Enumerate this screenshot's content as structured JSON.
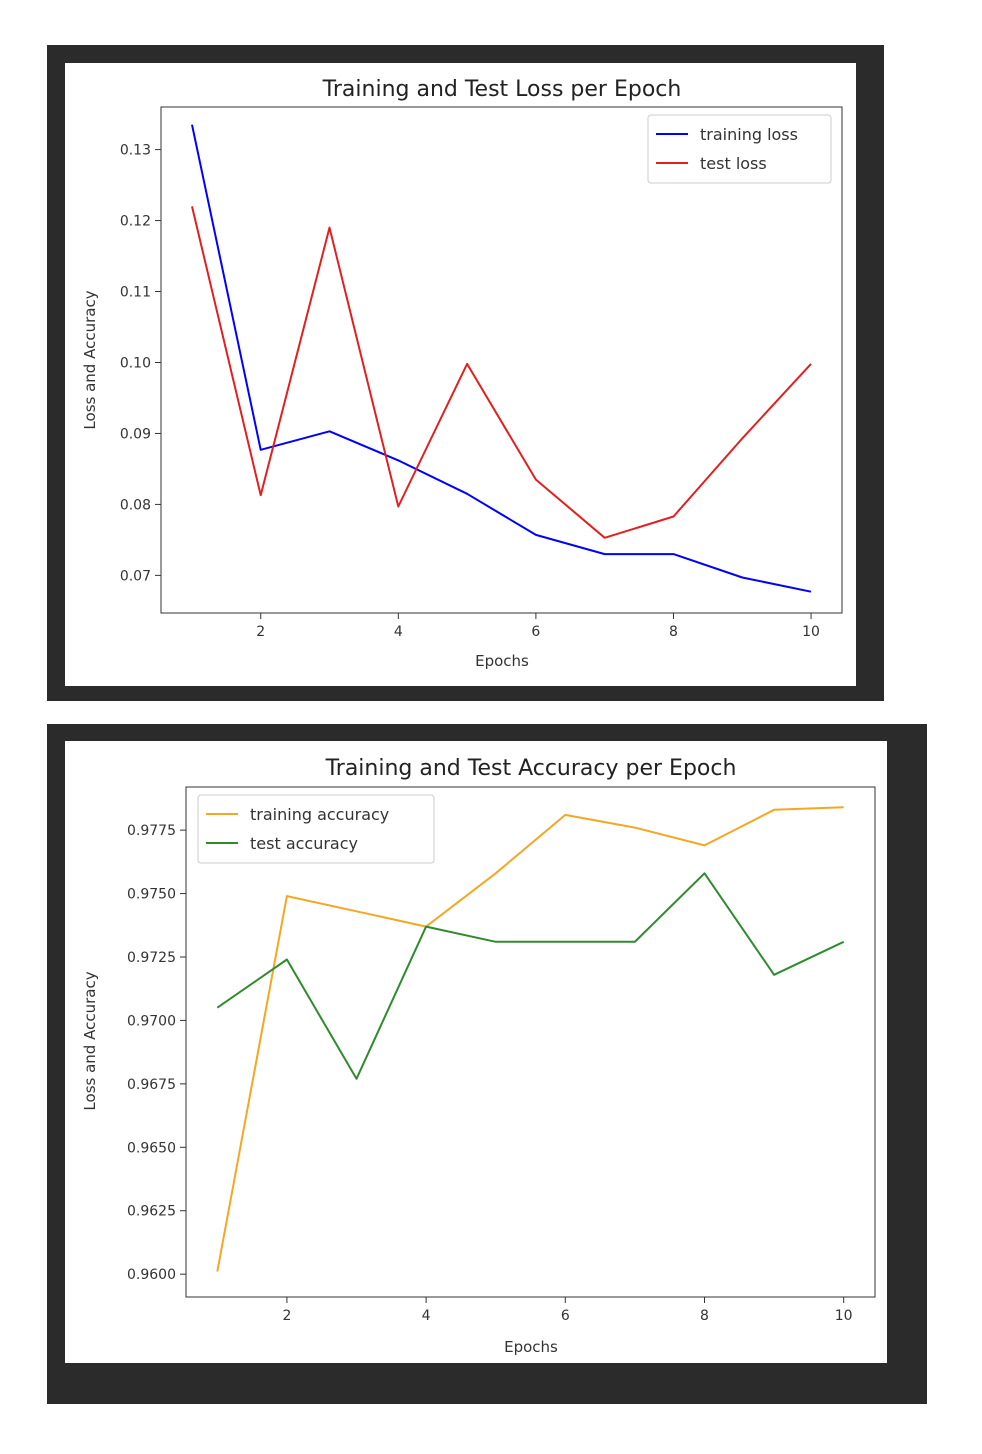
{
  "chart_data": [
    {
      "type": "line",
      "title": "Training and Test Loss per Epoch",
      "xlabel": "Epochs",
      "ylabel": "Loss and Accuracy",
      "xlim": [
        0.55,
        10.45
      ],
      "ylim": [
        0.0647,
        0.136
      ],
      "xticks": [
        2,
        4,
        6,
        8,
        10
      ],
      "xtick_labels": [
        "2",
        "4",
        "6",
        "8",
        "10"
      ],
      "yticks": [
        0.07,
        0.08,
        0.09,
        0.1,
        0.11,
        0.12,
        0.13
      ],
      "ytick_labels": [
        "0.07",
        "0.08",
        "0.09",
        "0.10",
        "0.11",
        "0.12",
        "0.13"
      ],
      "grid": false,
      "legend_position": "top-right",
      "x": [
        1,
        2,
        3,
        4,
        5,
        6,
        7,
        8,
        9,
        10
      ],
      "series": [
        {
          "name": "training loss",
          "color": "#0000ff",
          "values": [
            0.1335,
            0.0877,
            0.0903,
            0.0862,
            0.0815,
            0.0757,
            0.073,
            0.073,
            0.0697,
            0.0677
          ]
        },
        {
          "name": "test loss",
          "color": "#e02020",
          "values": [
            0.122,
            0.0813,
            0.119,
            0.0797,
            0.0998,
            0.0835,
            0.0753,
            0.0783,
            0.0893,
            0.0998
          ]
        }
      ]
    },
    {
      "type": "line",
      "title": "Training and Test Accuracy per Epoch",
      "xlabel": "Epochs",
      "ylabel": "Loss and Accuracy",
      "xlim": [
        0.55,
        10.45
      ],
      "ylim": [
        0.9591,
        0.9792
      ],
      "xticks": [
        2,
        4,
        6,
        8,
        10
      ],
      "xtick_labels": [
        "2",
        "4",
        "6",
        "8",
        "10"
      ],
      "yticks": [
        0.96,
        0.9625,
        0.965,
        0.9675,
        0.97,
        0.9725,
        0.975,
        0.9775
      ],
      "ytick_labels": [
        "0.9600",
        "0.9625",
        "0.9650",
        "0.9675",
        "0.9700",
        "0.9725",
        "0.9750",
        "0.9775"
      ],
      "grid": false,
      "legend_position": "top-left",
      "x": [
        1,
        2,
        3,
        4,
        5,
        6,
        7,
        8,
        9,
        10
      ],
      "series": [
        {
          "name": "training accuracy",
          "color": "#f5a623",
          "values": [
            0.9601,
            0.9749,
            0.9743,
            0.9737,
            0.9758,
            0.9781,
            0.9776,
            0.9769,
            0.9783,
            0.9784
          ]
        },
        {
          "name": "test accuracy",
          "color": "#2e8b2e",
          "values": [
            0.9705,
            0.9724,
            0.9677,
            0.9737,
            0.9731,
            0.9731,
            0.9731,
            0.9758,
            0.9718,
            0.9731
          ]
        }
      ]
    }
  ]
}
